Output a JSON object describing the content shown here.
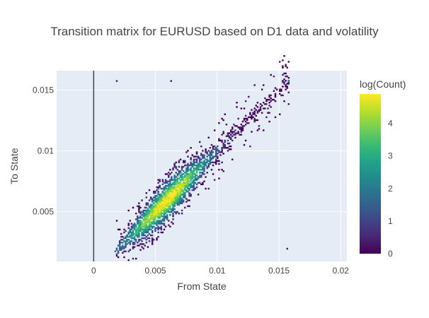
{
  "chart_data": {
    "type": "heatmap",
    "title": "Transition matrix for EURUSD based on D1 data and volatility",
    "xlabel": "From State",
    "ylabel": "To State",
    "xlim": [
      -0.003,
      0.0205
    ],
    "ylim": [
      0.0009,
      0.0166
    ],
    "x_ticks": [
      0,
      0.005,
      0.01,
      0.015,
      0.02
    ],
    "x_tick_labels": [
      "0",
      "0.005",
      "0.01",
      "0.015",
      "0.02"
    ],
    "y_ticks": [
      0.005,
      0.01,
      0.015
    ],
    "y_tick_labels": [
      "0.005",
      "0.01",
      "0.015"
    ],
    "grid": true,
    "colorscale": "Viridis",
    "colorscale_stops": [
      "#440154",
      "#482878",
      "#3e4989",
      "#31688e",
      "#26828e",
      "#1f9e89",
      "#35b779",
      "#6ece58",
      "#b5de2b",
      "#fde725"
    ],
    "colorbar": {
      "title": "log(Count)",
      "range": [
        0,
        4.9
      ],
      "ticks": [
        0,
        1,
        2,
        3,
        4
      ],
      "tick_labels": [
        "0",
        "1",
        "2",
        "3",
        "4"
      ]
    },
    "bin_size": 0.00012,
    "band": {
      "x_start": 0.0017,
      "x_end": 0.0158,
      "peak_x": 0.0058,
      "peak_value": 4.9
    },
    "outliers": [
      {
        "x": 0.0018,
        "y": 0.0157,
        "value": 0.3
      },
      {
        "x": 0.0062,
        "y": 0.0157,
        "value": 0.3
      },
      {
        "x": 0.0156,
        "y": 0.0019,
        "value": 0.3
      },
      {
        "x": 0.0157,
        "y": 0.0157,
        "value": 2.8
      }
    ],
    "zero_line_x": 0
  }
}
